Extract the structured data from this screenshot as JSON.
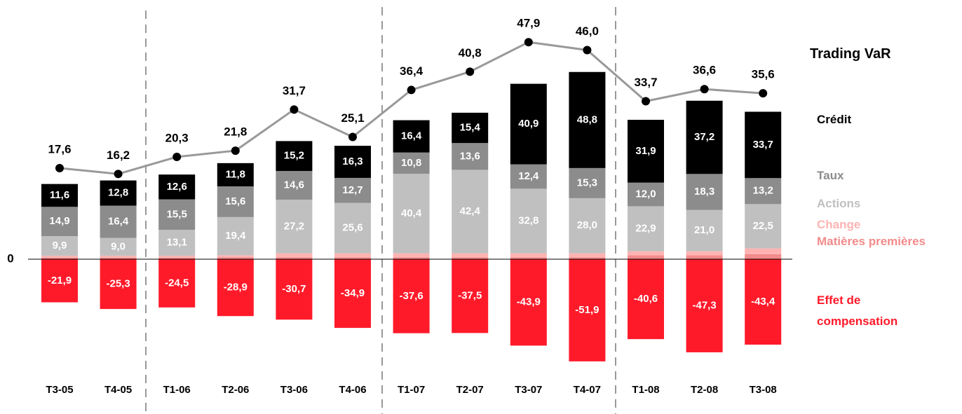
{
  "chart_data": {
    "type": "bar",
    "categories": [
      "T3-05",
      "T4-05",
      "T1-06",
      "T2-06",
      "T3-06",
      "T4-06",
      "T1-07",
      "T2-07",
      "T3-07",
      "T4-07",
      "T1-08",
      "T2-08",
      "T3-08"
    ],
    "ylim": [
      -57,
      117
    ],
    "yticks": [
      0
    ],
    "y2lim": [
      -31.3,
      51.1
    ],
    "series": [
      {
        "name": "Matières premières",
        "color": "#f28b8b",
        "values": [
          0.8,
          0.8,
          0.8,
          1,
          1,
          1,
          1,
          1,
          1,
          1,
          2,
          2,
          2.5
        ]
      },
      {
        "name": "Change",
        "color": "#ffb3b3",
        "values": [
          1,
          1,
          1,
          1,
          2,
          2,
          2,
          2,
          2,
          2,
          2,
          2,
          3
        ]
      },
      {
        "name": "Actions",
        "color": "#c0c0c0",
        "values": [
          9.9,
          9.0,
          13.1,
          19.4,
          27.2,
          25.6,
          40.4,
          42.4,
          32.8,
          28.0,
          22.9,
          21.0,
          22.5
        ],
        "value_labels": [
          "9,9",
          "9,0",
          "13,1",
          "19,4",
          "27,2",
          "25,6",
          "40,4",
          "42,4",
          "32,8",
          "28,0",
          "22,9",
          "21,0",
          "22,5"
        ]
      },
      {
        "name": "Taux",
        "color": "#8c8c8c",
        "values": [
          14.9,
          16.4,
          15.5,
          15.6,
          14.6,
          12.7,
          10.8,
          13.6,
          12.4,
          15.3,
          12.0,
          18.3,
          13.2
        ],
        "value_labels": [
          "14,9",
          "16,4",
          "15,5",
          "15,6",
          "14,6",
          "12,7",
          "10,8",
          "13,6",
          "12,4",
          "15,3",
          "12,0",
          "18,3",
          "13,2"
        ]
      },
      {
        "name": "Crédit",
        "color": "#000000",
        "values": [
          11.6,
          12.8,
          12.6,
          11.8,
          15.2,
          16.3,
          16.4,
          15.4,
          40.9,
          48.8,
          31.9,
          37.2,
          33.7
        ],
        "value_labels": [
          "11,6",
          "12,8",
          "12,6",
          "11,8",
          "15,2",
          "16,3",
          "16,4",
          "15,4",
          "40,9",
          "48,8",
          "31,9",
          "37,2",
          "33,7"
        ]
      },
      {
        "name": "Effet de compensation",
        "color": "#ff1a2a",
        "values": [
          -21.9,
          -25.3,
          -24.5,
          -28.9,
          -30.7,
          -34.9,
          -37.6,
          -37.5,
          -43.9,
          -51.9,
          -40.6,
          -47.3,
          -43.4
        ],
        "value_labels": [
          "-21,9",
          "-25,3",
          "-24,5",
          "-28,9",
          "-30,7",
          "-34,9",
          "-37,6",
          "-37,5",
          "-43,9",
          "-51,9",
          "-40,6",
          "-47,3",
          "-43,4"
        ]
      },
      {
        "name": "Trading VaR",
        "type": "line",
        "axis": "y2",
        "color": "#999999",
        "values": [
          17.6,
          16.2,
          20.3,
          21.8,
          31.7,
          25.1,
          36.4,
          40.8,
          47.9,
          46.0,
          33.7,
          36.6,
          35.6
        ],
        "value_labels": [
          "17,6",
          "16,2",
          "20,3",
          "21,8",
          "31,7",
          "25,1",
          "36,4",
          "40,8",
          "47,9",
          "46,0",
          "33,7",
          "36,6",
          "35,6"
        ]
      }
    ]
  }
}
